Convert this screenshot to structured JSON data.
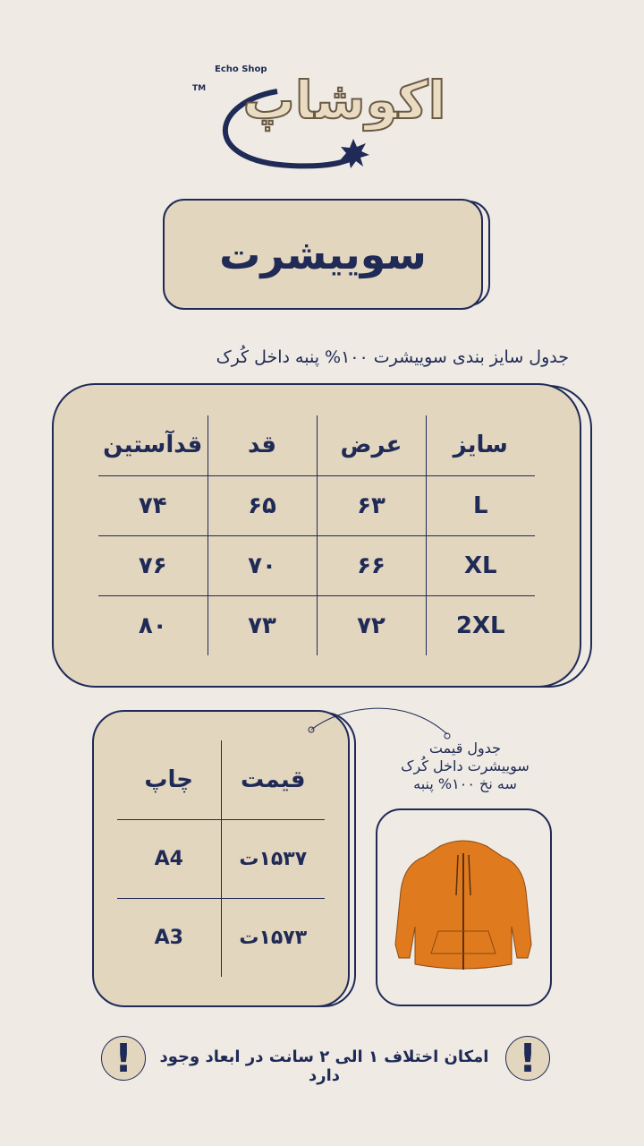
{
  "logo": {
    "brand_fa": "اکوشاپ",
    "brand_en": "Echo Shop",
    "tm": "TM"
  },
  "title": "سوییشرت",
  "size_caption": "جدول سایز بندی سوییشرت ۱۰۰% پنبه داخل کُرک",
  "size_table": {
    "headers": [
      "سایز",
      "عرض",
      "قد",
      "قدآستین"
    ],
    "rows": [
      [
        "L",
        "۶۳",
        "۶۵",
        "۷۴"
      ],
      [
        "XL",
        "۶۶",
        "۷۰",
        "۷۶"
      ],
      [
        "2XL",
        "۷۲",
        "۷۳",
        "۸۰"
      ]
    ]
  },
  "price_table": {
    "headers": [
      "قیمت",
      "چاپ"
    ],
    "rows": [
      [
        "۱۵۳۷ت",
        "A4"
      ],
      [
        "۱۵۷۳ت",
        "A3"
      ]
    ]
  },
  "price_caption": [
    "جدول قیمت",
    "سوییشرت داخل کُرک",
    "سه نخ ۱۰۰% پنبه"
  ],
  "product_image": {
    "color": "#e07a1f",
    "label": "hoodie"
  },
  "notice": "امکان اختلاف ۱ الی ۲ سانت در ابعاد وجود دارد",
  "colors": {
    "navy": "#1f2a56",
    "card": "#e3d6bf",
    "background": "#efebe4",
    "hoodie": "#e07a1f"
  }
}
